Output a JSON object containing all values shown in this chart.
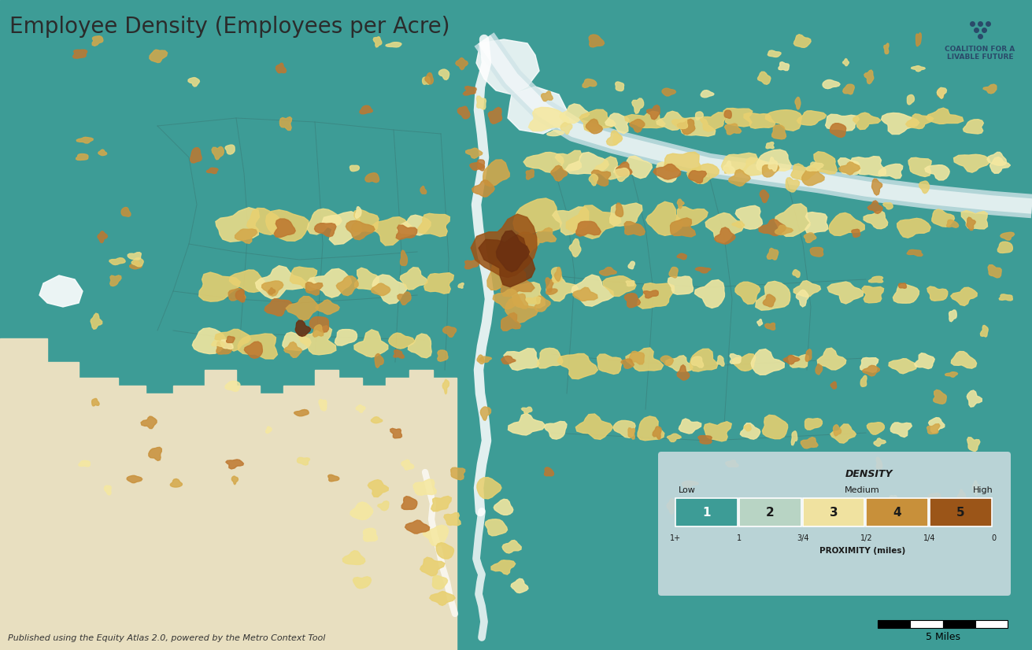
{
  "title": "Employee Density (Employees per Acre)",
  "title_fontsize": 20,
  "title_color": "#2b2b2b",
  "map_bg_color": "#3d9c96",
  "land_beige_color": "#e8dfc0",
  "water_color": "#c5dede",
  "river_color": "#d8e8e8",
  "boundary_color": "#4a7a78",
  "legend_title": "DENSITY",
  "legend_labels": [
    "1",
    "2",
    "3",
    "4",
    "5"
  ],
  "legend_colors": [
    "#3d9c96",
    "#b8d4c4",
    "#f0e2a0",
    "#c8903a",
    "#9b5518"
  ],
  "legend_low": "Low",
  "legend_medium": "Medium",
  "legend_high": "High",
  "legend_proximity_label": "PROXIMITY (miles)",
  "legend_proximity_ticks": [
    "1+",
    "1",
    "3/4",
    "1/2",
    "1/4",
    "0"
  ],
  "scale_bar_label": "5 Miles",
  "footer_text": "Published using the Equity Atlas 2.0, powered by the Metro Context Tool",
  "footer_fontsize": 8,
  "logo_text": "COALITION FOR A\nLIVABLE FUTURE",
  "logo_fontsize": 6.5,
  "density_blob_colors_light": [
    "#f5e8a0",
    "#eedd88",
    "#e8d070"
  ],
  "density_blob_colors_medium": [
    "#d4a84a",
    "#c8903a",
    "#be7830"
  ],
  "density_blob_colors_dark": [
    "#9b5518",
    "#7a3a10",
    "#6b3010"
  ]
}
